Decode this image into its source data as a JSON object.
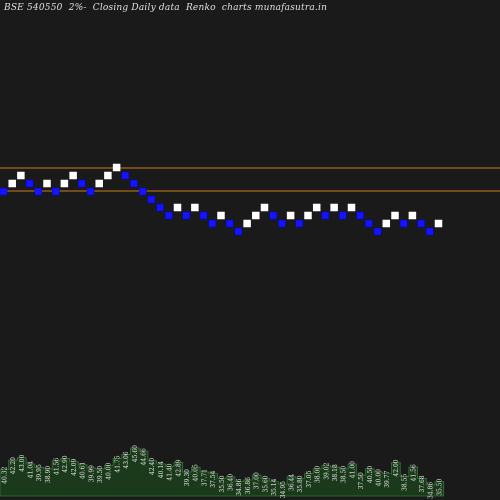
{
  "chart_data": {
    "type": "renko",
    "title": "BSE 540550  2%-  Closing Daily data  Renko  charts munafasutra.in",
    "colors": {
      "background": "#1a1a1a",
      "up_brick_fill": "#ffffff",
      "down_brick_fill": "#1414ff",
      "reference_line": "#cc7a1a",
      "volume_fill": "#1b3a1b",
      "volume_outline": "#2f7a2f",
      "label_text": "#e6e6e6"
    },
    "reference_lines": [
      "upper",
      "lower"
    ],
    "brick_directions": [
      "down",
      "up",
      "up",
      "down",
      "down",
      "up",
      "down",
      "up",
      "up",
      "down",
      "down",
      "up",
      "up",
      "up",
      "down",
      "down",
      "down",
      "down",
      "down",
      "down",
      "up",
      "down",
      "up",
      "down",
      "down",
      "up",
      "down",
      "down",
      "up",
      "up",
      "up",
      "down",
      "down",
      "up",
      "down",
      "up",
      "up",
      "down",
      "up",
      "down",
      "up",
      "down",
      "down",
      "down",
      "up",
      "up",
      "down",
      "up",
      "down",
      "down",
      "up"
    ],
    "volume_labels": [
      "40.32",
      "42.20",
      "43.00",
      "41.04",
      "39.95",
      "38.90",
      "41.56",
      "42.90",
      "42.09",
      "40.61",
      "39.99",
      "39.50",
      "40.00",
      "41.75",
      "43.06",
      "45.60",
      "44.66",
      "42.40",
      "40.14",
      "41.40",
      "42.89",
      "39.30",
      "40.05",
      "37.71",
      "37.54",
      "35.50",
      "36.40",
      "34.86",
      "36.86",
      "37.00",
      "35.60",
      "35.14",
      "34.95",
      "36.44",
      "35.80",
      "37.05",
      "38.00",
      "39.02",
      "38.18",
      "38.50",
      "41.00",
      "37.50",
      "40.50",
      "40.00",
      "39.77",
      "42.00",
      "38.55",
      "41.56",
      "37.68",
      "34.86",
      "35.50"
    ],
    "volume_levels": [
      0.33,
      0.45,
      0.48,
      0.4,
      0.36,
      0.34,
      0.44,
      0.47,
      0.43,
      0.39,
      0.35,
      0.34,
      0.38,
      0.47,
      0.52,
      0.6,
      0.56,
      0.44,
      0.4,
      0.37,
      0.42,
      0.3,
      0.36,
      0.3,
      0.28,
      0.22,
      0.24,
      0.18,
      0.2,
      0.26,
      0.22,
      0.18,
      0.15,
      0.24,
      0.22,
      0.28,
      0.34,
      0.38,
      0.36,
      0.34,
      0.4,
      0.26,
      0.34,
      0.3,
      0.28,
      0.42,
      0.24,
      0.36,
      0.22,
      0.14,
      0.18
    ]
  }
}
